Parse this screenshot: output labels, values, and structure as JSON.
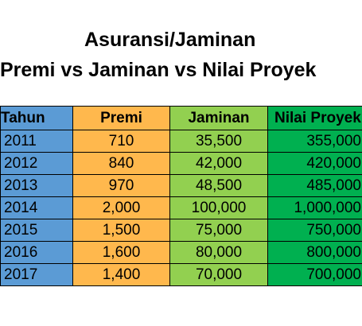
{
  "title": {
    "line1": "Asuransi/Jaminan",
    "line2": "Premi vs Jaminan vs Nilai Proyek"
  },
  "colors": {
    "tahun": "#5b9bd5",
    "premi": "#ffb84d",
    "jaminan": "#92d050",
    "nilai_proyek": "#00b050"
  },
  "table": {
    "headers": [
      "Tahun",
      "Premi",
      "Jaminan",
      "Nilai Proyek"
    ],
    "rows": [
      [
        "2011",
        "710",
        "35,500",
        "355,000"
      ],
      [
        "2012",
        "840",
        "42,000",
        "420,000"
      ],
      [
        "2013",
        "970",
        "48,500",
        "485,000"
      ],
      [
        "2014",
        "2,000",
        "100,000",
        "1,000,000"
      ],
      [
        "2015",
        "1,500",
        "75,000",
        "750,000"
      ],
      [
        "2016",
        "1,600",
        "80,000",
        "800,000"
      ],
      [
        "2017",
        "1,400",
        "70,000",
        "700,000"
      ]
    ]
  }
}
